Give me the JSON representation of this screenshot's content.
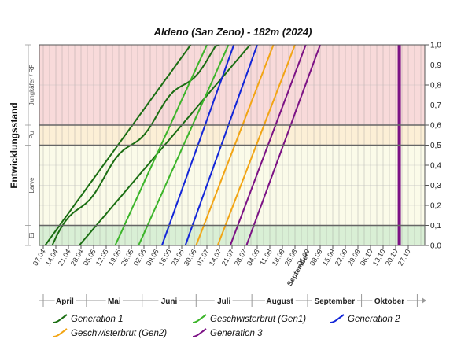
{
  "chart_data": {
    "type": "line",
    "title": "Aldeno (San Zeno) - 182m (2024)",
    "ylabel": "Entwicklungsstand",
    "ylim": [
      0,
      1
    ],
    "y_ticks": [
      "0,0",
      "0,1",
      "0,2",
      "0,3",
      "0,4",
      "0,5",
      "0,6",
      "0,7",
      "0,8",
      "0,9",
      "1,0"
    ],
    "stage_bands": [
      {
        "name": "Ei",
        "from": 0.0,
        "to": 0.1,
        "color": "#d9efd5"
      },
      {
        "name": "Larve",
        "from": 0.1,
        "to": 0.5,
        "color": "#fbfbe9"
      },
      {
        "name": "Pu",
        "from": 0.5,
        "to": 0.6,
        "color": "#fcefd6"
      },
      {
        "name": "Jungkäfer / RF",
        "from": 0.6,
        "to": 1.0,
        "color": "#f8dada"
      }
    ],
    "x_range_day": [
      0,
      210
    ],
    "x_ticks": [
      {
        "label": "07.04",
        "day": 0
      },
      {
        "label": "14.04",
        "day": 7
      },
      {
        "label": "21.04",
        "day": 14
      },
      {
        "label": "28.04",
        "day": 21
      },
      {
        "label": "05.05",
        "day": 28
      },
      {
        "label": "12.05",
        "day": 35
      },
      {
        "label": "19.05",
        "day": 42
      },
      {
        "label": "26.05",
        "day": 49
      },
      {
        "label": "02.06",
        "day": 56
      },
      {
        "label": "09.06",
        "day": 63
      },
      {
        "label": "16.06",
        "day": 70
      },
      {
        "label": "23.06",
        "day": 77
      },
      {
        "label": "30.06",
        "day": 84
      },
      {
        "label": "07.07",
        "day": 91
      },
      {
        "label": "14.07",
        "day": 98
      },
      {
        "label": "21.07",
        "day": 105
      },
      {
        "label": "28.07",
        "day": 112
      },
      {
        "label": "04.08",
        "day": 119
      },
      {
        "label": "11.08",
        "day": 126
      },
      {
        "label": "18.08",
        "day": 133
      },
      {
        "label": "25.08",
        "day": 140
      },
      {
        "label": "01.09",
        "day": 147
      },
      {
        "label": "08.09",
        "day": 154
      },
      {
        "label": "15.09",
        "day": 161
      },
      {
        "label": "22.09",
        "day": 168
      },
      {
        "label": "29.09",
        "day": 175
      },
      {
        "label": "06.10",
        "day": 182
      },
      {
        "label": "13.10",
        "day": 189
      },
      {
        "label": "20.10",
        "day": 196
      },
      {
        "label": "27.10",
        "day": 203
      }
    ],
    "x_bold_label": {
      "label": "September",
      "day": 147
    },
    "months": [
      {
        "label": "April",
        "start": 0,
        "end": 24
      },
      {
        "label": "Mai",
        "start": 24,
        "end": 55
      },
      {
        "label": "Juni",
        "start": 55,
        "end": 85
      },
      {
        "label": "Juli",
        "start": 85,
        "end": 116
      },
      {
        "label": "August",
        "start": 116,
        "end": 147
      },
      {
        "label": "September",
        "start": 147,
        "end": 177
      },
      {
        "label": "Oktober",
        "start": 177,
        "end": 208
      }
    ],
    "series": [
      {
        "name": "Generation 1",
        "color": "#1a6e12",
        "curves": [
          {
            "start": 1,
            "end": 82
          },
          {
            "start": 5,
            "end": 98,
            "wobble": true
          },
          {
            "start": 20,
            "end": 115
          }
        ]
      },
      {
        "name": "Geschwisterbrut (Gen1)",
        "color": "#3cb52a",
        "curves": [
          {
            "start": 40,
            "end": 91
          },
          {
            "start": 53,
            "end": 103
          }
        ]
      },
      {
        "name": "Generation 2",
        "color": "#1326d8",
        "curves": [
          {
            "start": 66,
            "end": 106
          },
          {
            "start": 79,
            "end": 119
          }
        ]
      },
      {
        "name": "Geschwisterbrut (Gen2)",
        "color": "#f2a515",
        "curves": [
          {
            "start": 85,
            "end": 128
          },
          {
            "start": 97,
            "end": 140
          }
        ]
      },
      {
        "name": "Generation 3",
        "color": "#7c1285",
        "curves": [
          {
            "start": 104,
            "end": 146
          },
          {
            "start": 113,
            "end": 154
          }
        ]
      }
    ],
    "vertical_marker": {
      "day": 198,
      "color": "#7c1285"
    }
  }
}
